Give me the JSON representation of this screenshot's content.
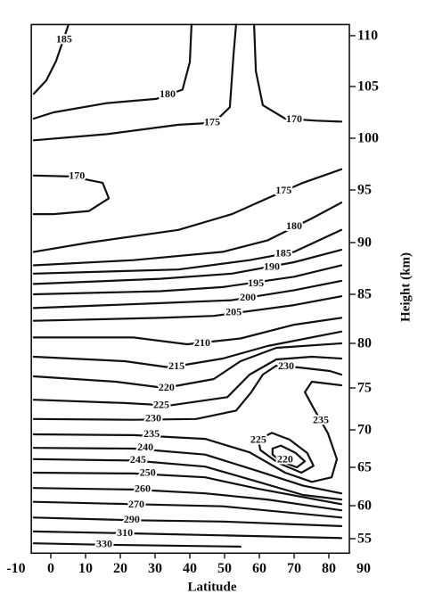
{
  "chart_data": {
    "type": "contour",
    "x_label": "Latitude",
    "y_label": "Height (km)",
    "xlim": [
      -5.6,
      85.9
    ],
    "xticks": [
      -10,
      0,
      10,
      20,
      30,
      40,
      50,
      60,
      70,
      80,
      90
    ],
    "ylim": [
      52.8,
      111.1
    ],
    "yticks": [
      55,
      60,
      65,
      70,
      75,
      80,
      85,
      90,
      95,
      100,
      105,
      110
    ],
    "color": "#111111",
    "contours": [
      {
        "level": 185,
        "lat": [
          -4.9,
          -1.3,
          1.5,
          3.3,
          5.1
        ],
        "height": [
          104.3,
          105.6,
          107.5,
          109.3,
          111.1
        ],
        "labels_at": [
          [
            3.8,
            109.6
          ]
        ]
      },
      {
        "level": 180,
        "lat": [
          -4.9,
          0.8,
          16.2,
          30.3,
          37.9,
          40,
          40.5
        ],
        "height": [
          101.9,
          102.5,
          103.4,
          103.8,
          104.7,
          107.4,
          111.1
        ],
        "labels_at": [
          [
            33.6,
            104.2
          ]
        ]
      },
      {
        "level": 175,
        "lat": [
          -4.9,
          16.2,
          36.7,
          46.9,
          51.5,
          52.6,
          53.3
        ],
        "height": [
          99.8,
          100.4,
          101.3,
          101.5,
          103,
          108.2,
          111.1
        ],
        "labels_at": [
          [
            46.4,
            101.5
          ]
        ]
      },
      {
        "level": 170,
        "lat": [
          58.5,
          59,
          61,
          67.4,
          76.4,
          83.6
        ],
        "height": [
          111.1,
          106.5,
          103.2,
          101.9,
          101.7,
          101.6
        ],
        "labels_at": [
          [
            70,
            101.8
          ]
        ]
      },
      {
        "level": 170,
        "lat": [
          -4.9,
          5.9,
          14.9,
          16.7,
          11,
          0.8,
          -4.9
        ],
        "height": [
          96.4,
          96.3,
          95.7,
          94.2,
          93,
          92.7,
          92.7
        ],
        "labels_at": [
          [
            7.5,
            96.3
          ]
        ]
      },
      {
        "level": 175,
        "lat": [
          -4.9,
          11,
          36.7,
          52.1,
          62.3,
          72.6,
          83.6
        ],
        "height": [
          89.1,
          90,
          91.2,
          92.7,
          94.2,
          95.7,
          97
        ],
        "labels_at": [
          [
            67,
            94.9
          ]
        ]
      },
      {
        "level": 180,
        "lat": [
          -4.9,
          23.8,
          49.5,
          62.3,
          75.1,
          83.6
        ],
        "height": [
          87.8,
          88.3,
          89.1,
          90.2,
          92.3,
          93.8
        ],
        "labels_at": [
          [
            70,
            91.5
          ]
        ]
      },
      {
        "level": 185,
        "lat": [
          -4.9,
          36.7,
          57.2,
          70,
          83.6
        ],
        "height": [
          87,
          87.4,
          88.3,
          89.1,
          91.2
        ],
        "labels_at": [
          [
            66.9,
            88.9
          ]
        ]
      },
      {
        "level": 190,
        "lat": [
          -4.9,
          31.5,
          52.1,
          70,
          83.6
        ],
        "height": [
          86,
          86.5,
          87,
          88.1,
          89.3
        ],
        "labels_at": [
          [
            63.6,
            87.6
          ]
        ]
      },
      {
        "level": 195,
        "lat": [
          -4.9,
          31.5,
          49.5,
          70,
          83.6
        ],
        "height": [
          85,
          85.3,
          85.7,
          86.7,
          87.8
        ],
        "labels_at": [
          [
            59,
            86
          ]
        ]
      },
      {
        "level": 200,
        "lat": [
          -4.9,
          31.5,
          52.1,
          70,
          83.6
        ],
        "height": [
          83.6,
          84.1,
          84.4,
          85.4,
          86.3
        ],
        "labels_at": [
          [
            56.7,
            84.6
          ]
        ]
      },
      {
        "level": 205,
        "lat": [
          -4.9,
          31.5,
          46.9,
          70,
          83.6
        ],
        "height": [
          82.3,
          82.6,
          82.8,
          83.9,
          84.8
        ],
        "labels_at": [
          [
            52.6,
            83.1
          ]
        ]
      },
      {
        "level": 210,
        "lat": [
          -4.9,
          23.8,
          39.2,
          54.6,
          70,
          83.6
        ],
        "height": [
          80.6,
          80.6,
          79.9,
          80.5,
          81.9,
          82.6
        ],
        "labels_at": [
          [
            43.6,
            80
          ]
        ]
      },
      {
        "level": 215,
        "lat": [
          -4.9,
          21.3,
          34.1,
          49.5,
          62.3,
          83.6
        ],
        "height": [
          78.5,
          78,
          77.3,
          78.3,
          79.7,
          81.2
        ],
        "labels_at": [
          [
            36.2,
            77.4
          ]
        ]
      },
      {
        "level": 220,
        "lat": [
          -4.9,
          18.7,
          32.8,
          46.9,
          54.6,
          64.9,
          83.6
        ],
        "height": [
          76.3,
          75.7,
          75,
          76,
          78,
          79.5,
          80
        ],
        "labels_at": [
          [
            33.3,
            75
          ]
        ]
      },
      {
        "level": 225,
        "lat": [
          -4.9,
          21.3,
          34.1,
          50.8,
          57.2,
          64.9,
          75.1,
          83.6
        ],
        "height": [
          73.6,
          73.2,
          72.9,
          73.9,
          76.5,
          78.2,
          78.5,
          78.3
        ],
        "labels_at": [
          [
            31.8,
            72.9
          ]
        ]
      },
      {
        "level": 230,
        "lat": [
          -4.9,
          23.8,
          41.8,
          53.3,
          57.7,
          61,
          64.9,
          71.3,
          80.3,
          83.6
        ],
        "height": [
          71.3,
          71.2,
          71.3,
          72.3,
          74.5,
          76.5,
          77.5,
          77.3,
          76.9,
          76.5
        ],
        "labels_at": [
          [
            29.5,
            71.3
          ],
          [
            67.7,
            77.4
          ]
        ]
      },
      {
        "level": 235,
        "lat": [
          -4.9,
          23.8,
          44.4,
          57.2,
          67.4,
          75.1,
          80.8,
          82.3,
          79.7,
          75.6,
          73.1,
          75.1,
          83.6
        ],
        "height": [
          69.4,
          69.3,
          68.8,
          67,
          64.3,
          63.1,
          63.7,
          66.1,
          69.6,
          72.6,
          74.5,
          75.7,
          75.3
        ],
        "labels_at": [
          [
            29,
            69.4
          ],
          [
            77.7,
            71.1
          ]
        ]
      },
      {
        "level": 225,
        "lat": [
          59.7,
          63.6,
          68.7,
          73.8,
          75.6,
          72.1,
          65.4,
          60.3,
          59.7
        ],
        "height": [
          68.7,
          69.6,
          68.7,
          66.9,
          65.2,
          64.3,
          65.6,
          67.3,
          68.7
        ],
        "labels_at": [
          [
            59.7,
            68.6
          ]
        ]
      },
      {
        "level": 220,
        "lat": [
          63.8,
          66.2,
          70.5,
          73.1,
          70.8,
          66.2,
          63.8,
          63.8
        ],
        "height": [
          67.5,
          67.9,
          66.9,
          65.8,
          65,
          65.8,
          66.7,
          67.5
        ],
        "labels_at": [
          [
            67.4,
            66
          ]
        ]
      },
      {
        "level": 240,
        "lat": [
          -4.9,
          23.8,
          44.4,
          59.7,
          72.6,
          83.6
        ],
        "height": [
          67.6,
          67.5,
          66.7,
          64.5,
          62.6,
          61.6
        ],
        "labels_at": [
          [
            27.2,
            67.6
          ]
        ]
      },
      {
        "level": 245,
        "lat": [
          -4.9,
          23.8,
          44.4,
          59.7,
          72.6,
          83.6
        ],
        "height": [
          66.1,
          65.9,
          65.1,
          63.1,
          61.4,
          60.8
        ],
        "labels_at": [
          [
            25.1,
            65.9
          ]
        ]
      },
      {
        "level": 250,
        "lat": [
          -4.9,
          23.8,
          44.4,
          59.7,
          83.6
        ],
        "height": [
          64.3,
          64.2,
          63.7,
          62.2,
          60.2
        ],
        "labels_at": [
          [
            27.9,
            64.2
          ]
        ]
      },
      {
        "level": 260,
        "lat": [
          -4.9,
          23.8,
          44.4,
          62.3,
          83.6
        ],
        "height": [
          62.3,
          62.1,
          61.6,
          60.8,
          59.3
        ],
        "labels_at": [
          [
            26.4,
            62.1
          ]
        ]
      },
      {
        "level": 270,
        "lat": [
          -4.9,
          23.8,
          49.5,
          83.6
        ],
        "height": [
          60.5,
          60.2,
          59.9,
          58.2
        ],
        "labels_at": [
          [
            24.6,
            60.1
          ]
        ]
      },
      {
        "level": 290,
        "lat": [
          -4.9,
          23.8,
          49.5,
          83.6
        ],
        "height": [
          58.2,
          57.8,
          57.6,
          56.9
        ],
        "labels_at": [
          [
            23.3,
            57.8
          ]
        ]
      },
      {
        "level": 310,
        "lat": [
          -4.9,
          23.8,
          49.5,
          83.6
        ],
        "height": [
          56.1,
          55.8,
          55.5,
          55.1
        ],
        "labels_at": [
          [
            21.3,
            55.8
          ]
        ]
      },
      {
        "level": 330,
        "lat": [
          -4.9,
          13.6,
          54.6
        ],
        "height": [
          54.3,
          54.1,
          53.8
        ],
        "labels_at": [
          [
            15.4,
            54.1
          ]
        ]
      }
    ]
  }
}
